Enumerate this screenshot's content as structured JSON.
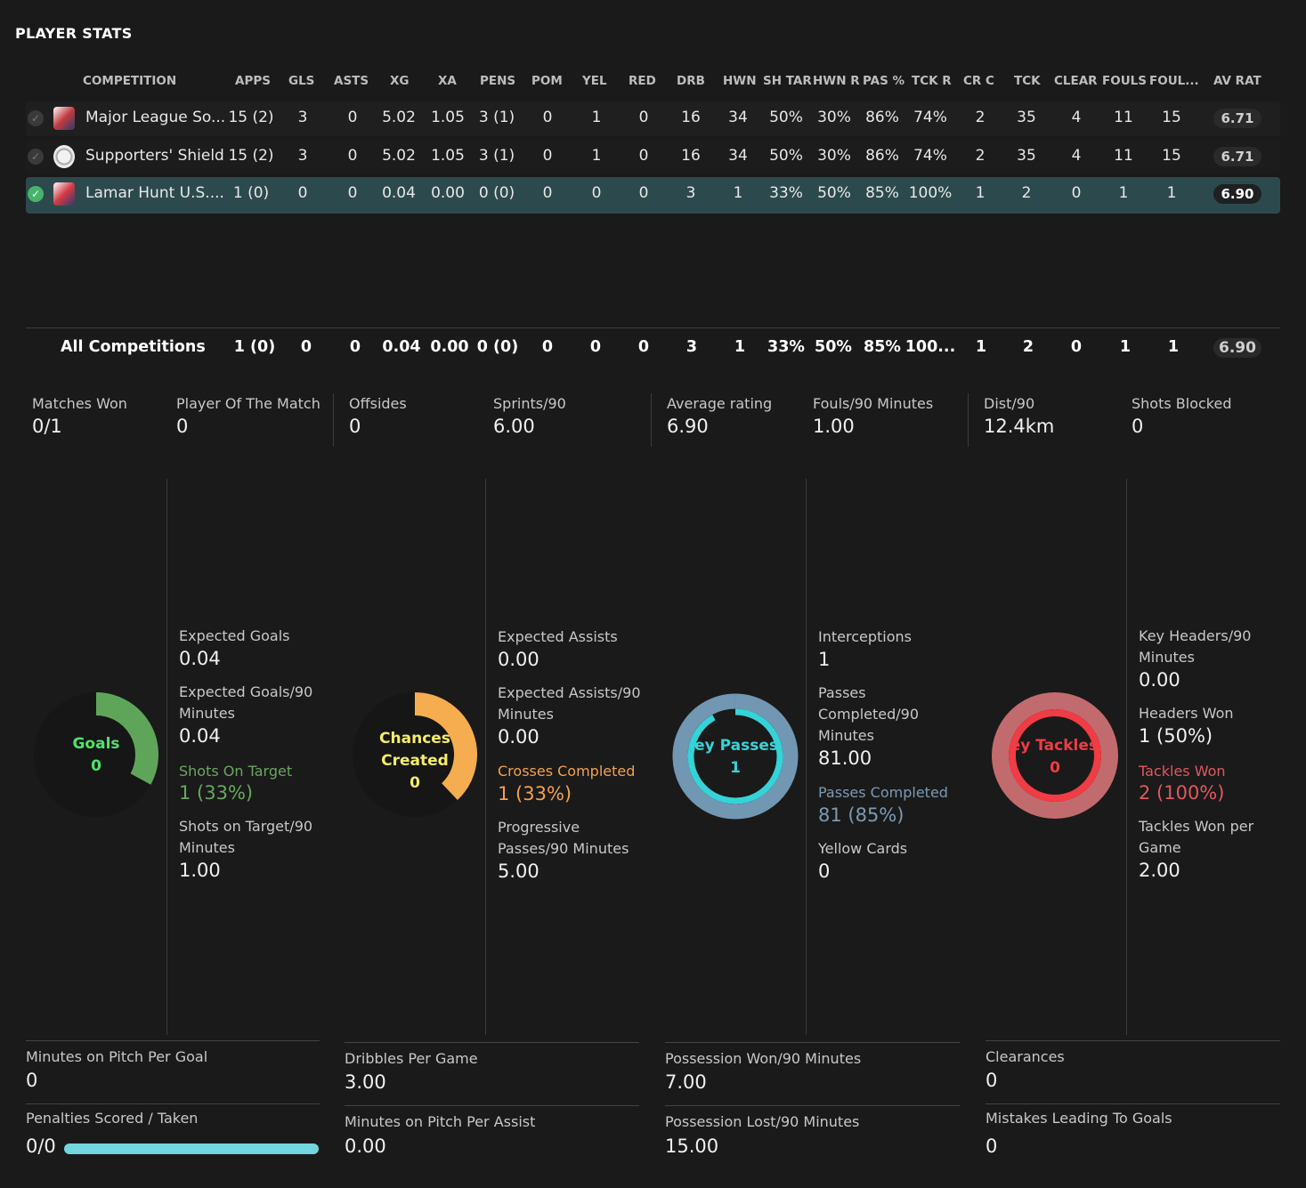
{
  "title": "PLAYER STATS",
  "columns": [
    "COMPETITION",
    "APPS",
    "GLS",
    "ASTS",
    "XG",
    "XA",
    "PENS",
    "POM",
    "YEL",
    "RED",
    "DRB",
    "HWN",
    "SH TAR",
    "HWN R",
    "PAS %",
    "TCK R",
    "CR C",
    "TCK",
    "CLEAR",
    "FOULS",
    "FOUL...",
    "AV RAT"
  ],
  "rows": [
    {
      "comp": "Major League So...",
      "apps": "15 (2)",
      "gls": "3",
      "asts": "0",
      "xg": "5.02",
      "xa": "1.05",
      "pens": "3 (1)",
      "pom": "0",
      "yel": "1",
      "red": "0",
      "drb": "16",
      "hwn": "34",
      "shtar": "50%",
      "hwnr": "30%",
      "pas": "86%",
      "tckr": "74%",
      "crc": "2",
      "tck": "35",
      "clear": "4",
      "fouls": "11",
      "foul2": "15",
      "avrat": "6.71",
      "selected": false
    },
    {
      "comp": "Supporters' Shield",
      "apps": "15 (2)",
      "gls": "3",
      "asts": "0",
      "xg": "5.02",
      "xa": "1.05",
      "pens": "3 (1)",
      "pom": "0",
      "yel": "1",
      "red": "0",
      "drb": "16",
      "hwn": "34",
      "shtar": "50%",
      "hwnr": "30%",
      "pas": "86%",
      "tckr": "74%",
      "crc": "2",
      "tck": "35",
      "clear": "4",
      "fouls": "11",
      "foul2": "15",
      "avrat": "6.71",
      "selected": false
    },
    {
      "comp": "Lamar Hunt U.S....",
      "apps": "1 (0)",
      "gls": "0",
      "asts": "0",
      "xg": "0.04",
      "xa": "0.00",
      "pens": "0 (0)",
      "pom": "0",
      "yel": "0",
      "red": "0",
      "drb": "3",
      "hwn": "1",
      "shtar": "33%",
      "hwnr": "50%",
      "pas": "85%",
      "tckr": "100%",
      "crc": "1",
      "tck": "2",
      "clear": "0",
      "fouls": "1",
      "foul2": "1",
      "avrat": "6.90",
      "selected": true
    }
  ],
  "totals": {
    "comp": "All Competitions",
    "apps": "1 (0)",
    "gls": "0",
    "asts": "0",
    "xg": "0.04",
    "xa": "0.00",
    "pens": "0 (0)",
    "pom": "0",
    "yel": "0",
    "red": "0",
    "drb": "3",
    "hwn": "1",
    "shtar": "33%",
    "hwnr": "50%",
    "pas": "85%",
    "tckr": "100...",
    "crc": "1",
    "tck": "2",
    "clear": "0",
    "fouls": "1",
    "foul2": "1",
    "avrat": "6.90"
  },
  "summary": [
    {
      "label": "Matches Won",
      "value": "0/1"
    },
    {
      "label": "Player Of The Match",
      "value": "0"
    },
    {
      "label": "Offsides",
      "value": "0"
    },
    {
      "label": "Sprints/90",
      "value": "6.00"
    },
    {
      "label": "Average rating",
      "value": "6.90"
    },
    {
      "label": "Fouls/90 Minutes",
      "value": "1.00"
    },
    {
      "label": "Dist/90",
      "value": "12.4km"
    },
    {
      "label": "Shots Blocked",
      "value": "0"
    }
  ],
  "rings": [
    {
      "title": "Goals",
      "value": "0",
      "color": "#5ea55a",
      "textColor": "#4fe36a",
      "fraction": 0.33
    },
    {
      "title": "Chances Created",
      "value": "0",
      "color": "#f5ad4f",
      "textColor": "#f4ec6a",
      "fraction": 0.38
    },
    {
      "title": "Key Passes",
      "value": "1",
      "color": "#7197b3",
      "inner": "#35d3d8",
      "textColor": "#35d3d8",
      "fraction": 1.0
    },
    {
      "title": "Key Tackles",
      "value": "0",
      "color": "#c26b6e",
      "inner": "#f03c45",
      "textColor": "#f03c45",
      "fraction": 1.0
    }
  ],
  "panel1": [
    {
      "label": "Expected Goals",
      "value": "0.04"
    },
    {
      "label": "Expected Goals/90 Minutes",
      "value": "0.04"
    },
    {
      "label": "Shots On Target",
      "value": "1 (33%)"
    },
    {
      "label": "Shots on Target/90 Minutes",
      "value": "1.00"
    }
  ],
  "panel2": [
    {
      "label": "Expected Assists",
      "value": "0.00"
    },
    {
      "label": "Expected Assists/90 Minutes",
      "value": "0.00"
    },
    {
      "label": "Crosses Completed",
      "value": "1 (33%)"
    },
    {
      "label": "Progressive Passes/90 Minutes",
      "value": "5.00"
    }
  ],
  "panel3": [
    {
      "label": "Interceptions",
      "value": "1"
    },
    {
      "label": "Passes Completed/90 Minutes",
      "value": "81.00"
    },
    {
      "label": "Passes Completed",
      "value": "81 (85%)"
    },
    {
      "label": "Yellow Cards",
      "value": "0"
    }
  ],
  "panel4": [
    {
      "label": "Key Headers/90 Minutes",
      "value": "0.00"
    },
    {
      "label": "Headers Won",
      "value": "1 (50%)"
    },
    {
      "label": "Tackles Won",
      "value": "2 (100%)"
    },
    {
      "label": "Tackles Won per Game",
      "value": "2.00"
    }
  ],
  "bottom": [
    {
      "label": "Minutes on Pitch Per Goal",
      "value": "0"
    },
    {
      "label": "Penalties Scored / Taken",
      "value": "0/0"
    },
    {
      "label": "Dribbles Per Game",
      "value": "3.00"
    },
    {
      "label": "Minutes on Pitch Per Assist",
      "value": "0.00"
    },
    {
      "label": "Possession Won/90 Minutes",
      "value": "7.00"
    },
    {
      "label": "Possession Lost/90 Minutes",
      "value": "15.00"
    },
    {
      "label": "Clearances",
      "value": "0"
    },
    {
      "label": "Mistakes Leading To Goals",
      "value": "0"
    }
  ],
  "penalty_progress": 1.0
}
